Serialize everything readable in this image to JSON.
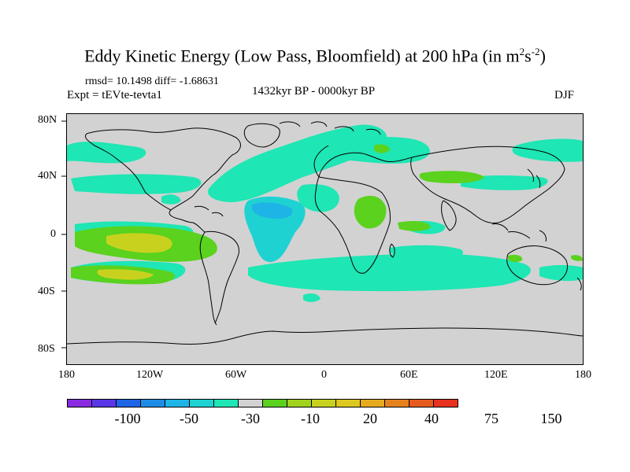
{
  "title": {
    "main": "Eddy Kinetic Energy (Low Pass, Bloomfield) at 200 hPa (in m",
    "sup1": "2",
    "mid": "s",
    "sup2": "-2",
    "end": ")"
  },
  "stats": "rmsd= 10.1498 diff= -1.68631",
  "experiment": "Expt = tEVte-tevta1",
  "period": "1432kyr BP - 0000kyr BP",
  "season": "DJF",
  "axes": {
    "y_ticks": [
      "80N",
      "40N",
      "0",
      "40S",
      "80S"
    ],
    "x_ticks": [
      "180",
      "120W",
      "60W",
      "0",
      "60E",
      "120E",
      "180"
    ]
  },
  "colorbar": {
    "colors": [
      "#8a2be2",
      "#5a37e6",
      "#1e64e6",
      "#1e8ce6",
      "#1eb4e6",
      "#1ed2d2",
      "#1ee6b4",
      "#d2d2d2",
      "#5ad21e",
      "#a0d21e",
      "#c8d21e",
      "#dcc81e",
      "#e6aa1e",
      "#e6821e",
      "#e65a1e",
      "#e6321e"
    ],
    "labels": [
      "-100",
      "-50",
      "-30",
      "-10",
      "20",
      "40",
      "75",
      "150"
    ]
  },
  "colors": {
    "ocean_background": "#d2d2d2",
    "positive_green": "#5ad21e",
    "positive_yellow": "#c8d21e",
    "negative_teal": "#1ee6b4",
    "negative_cyan": "#1ed2d2",
    "negative_blue": "#1eb4e6"
  }
}
